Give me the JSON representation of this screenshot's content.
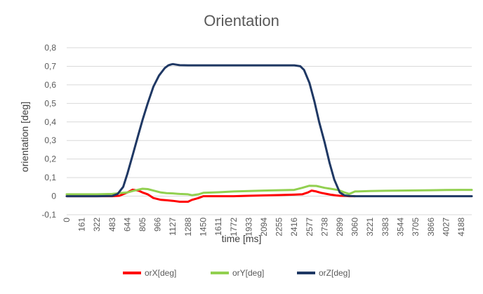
{
  "chart_data": {
    "type": "line",
    "title": "Orientation",
    "xlabel": "time [ms]",
    "ylabel": "orientation [deg]",
    "ylim": [
      -0.1,
      0.8
    ],
    "xlim": [
      0,
      4300
    ],
    "y_ticks": [
      "-0,1",
      "0",
      "0,1",
      "0,2",
      "0,3",
      "0,4",
      "0,5",
      "0,6",
      "0,7",
      "0,8"
    ],
    "y_tick_values": [
      -0.1,
      0,
      0.1,
      0.2,
      0.3,
      0.4,
      0.5,
      0.6,
      0.7,
      0.8
    ],
    "x_ticks": [
      "0",
      "161",
      "322",
      "483",
      "644",
      "805",
      "966",
      "1127",
      "1288",
      "1450",
      "1611",
      "1772",
      "1933",
      "2094",
      "2255",
      "2416",
      "2577",
      "2738",
      "2899",
      "3060",
      "3221",
      "3383",
      "3544",
      "3705",
      "3866",
      "4027",
      "4188"
    ],
    "x_tick_values": [
      0,
      161,
      322,
      483,
      644,
      805,
      966,
      1127,
      1288,
      1450,
      1611,
      1772,
      1933,
      2094,
      2255,
      2416,
      2577,
      2738,
      2899,
      3060,
      3221,
      3383,
      3544,
      3705,
      3866,
      4027,
      4188
    ],
    "grid": true,
    "legend_position": "bottom",
    "series": [
      {
        "name": "orX[deg]",
        "color": "#ff0000",
        "x": [
          0,
          483,
          560,
          644,
          700,
          760,
          805,
          860,
          920,
          1000,
          1060,
          1127,
          1200,
          1288,
          1330,
          1400,
          1450,
          1611,
          1772,
          1933,
          2094,
          2255,
          2416,
          2500,
          2560,
          2600,
          2650,
          2700,
          2740,
          2800,
          2860,
          2899,
          2960,
          3000,
          3060
        ],
        "y": [
          0,
          0,
          0.002,
          0.02,
          0.035,
          0.03,
          0.02,
          0.01,
          -0.01,
          -0.02,
          -0.022,
          -0.025,
          -0.03,
          -0.03,
          -0.02,
          -0.01,
          0,
          0,
          0,
          0.002,
          0.004,
          0.006,
          0.008,
          0.01,
          0.02,
          0.03,
          0.025,
          0.018,
          0.014,
          0.008,
          0.004,
          0.002,
          0.001,
          0,
          0
        ]
      },
      {
        "name": "orY[deg]",
        "color": "#92d050",
        "x": [
          0,
          161,
          322,
          483,
          560,
          644,
          700,
          760,
          805,
          860,
          920,
          1000,
          1060,
          1127,
          1200,
          1288,
          1330,
          1400,
          1450,
          1611,
          1772,
          1933,
          2094,
          2255,
          2416,
          2500,
          2577,
          2650,
          2738,
          2800,
          2860,
          2899,
          2950,
          3000,
          3060,
          3221,
          3383,
          3544,
          3705,
          3866,
          4027,
          4188,
          4300
        ],
        "y": [
          0.01,
          0.01,
          0.01,
          0.012,
          0.016,
          0.02,
          0.028,
          0.035,
          0.04,
          0.038,
          0.03,
          0.02,
          0.016,
          0.015,
          0.012,
          0.01,
          0.005,
          0.01,
          0.018,
          0.021,
          0.025,
          0.028,
          0.03,
          0.032,
          0.034,
          0.045,
          0.056,
          0.055,
          0.045,
          0.04,
          0.035,
          0.03,
          0.02,
          0.012,
          0.025,
          0.028,
          0.029,
          0.03,
          0.031,
          0.032,
          0.033,
          0.034,
          0.034
        ]
      },
      {
        "name": "orZ[deg]",
        "color": "#1f3864",
        "x": [
          0,
          161,
          322,
          483,
          540,
          600,
          644,
          700,
          760,
          805,
          860,
          920,
          980,
          1040,
          1080,
          1110,
          1127,
          1150,
          1200,
          1288,
          1450,
          1611,
          1772,
          1933,
          2094,
          2255,
          2416,
          2480,
          2520,
          2577,
          2630,
          2680,
          2738,
          2790,
          2840,
          2899,
          2950,
          3000,
          3060,
          3221,
          3383,
          3544,
          3705,
          3866,
          4027,
          4188,
          4300
        ],
        "y": [
          0,
          0,
          0,
          0.001,
          0.012,
          0.05,
          0.12,
          0.22,
          0.33,
          0.41,
          0.5,
          0.59,
          0.65,
          0.69,
          0.705,
          0.71,
          0.712,
          0.71,
          0.706,
          0.705,
          0.705,
          0.705,
          0.705,
          0.705,
          0.705,
          0.705,
          0.705,
          0.7,
          0.68,
          0.61,
          0.51,
          0.4,
          0.29,
          0.18,
          0.09,
          0.02,
          0.004,
          0.001,
          0,
          0,
          0,
          0,
          0,
          0,
          0,
          0,
          0
        ]
      }
    ]
  }
}
